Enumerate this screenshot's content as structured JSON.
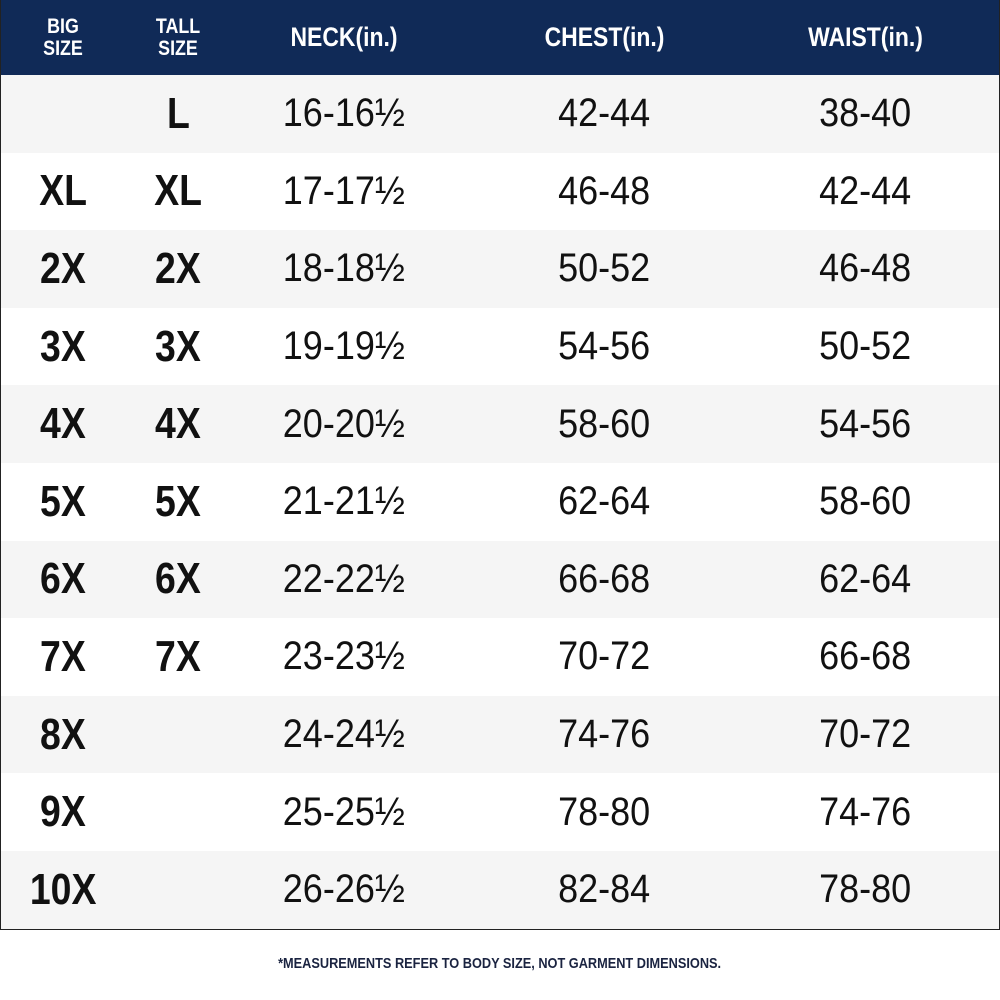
{
  "header": {
    "big_size": "BIG SIZE",
    "tall_size": "TALL SIZE",
    "neck": "NECK(in.)",
    "chest": "CHEST(in.)",
    "waist": "WAIST(in.)"
  },
  "colors": {
    "header_bg": "#102a57",
    "stripe": "#f5f5f5"
  },
  "rows": [
    {
      "big": "",
      "tall": "L",
      "neck": "16-16½",
      "chest": "42-44",
      "waist": "38-40"
    },
    {
      "big": "XL",
      "tall": "XL",
      "neck": "17-17½",
      "chest": "46-48",
      "waist": "42-44"
    },
    {
      "big": "2X",
      "tall": "2X",
      "neck": "18-18½",
      "chest": "50-52",
      "waist": "46-48"
    },
    {
      "big": "3X",
      "tall": "3X",
      "neck": "19-19½",
      "chest": "54-56",
      "waist": "50-52"
    },
    {
      "big": "4X",
      "tall": "4X",
      "neck": "20-20½",
      "chest": "58-60",
      "waist": "54-56"
    },
    {
      "big": "5X",
      "tall": "5X",
      "neck": "21-21½",
      "chest": "62-64",
      "waist": "58-60"
    },
    {
      "big": "6X",
      "tall": "6X",
      "neck": "22-22½",
      "chest": "66-68",
      "waist": "62-64"
    },
    {
      "big": "7X",
      "tall": "7X",
      "neck": "23-23½",
      "chest": "70-72",
      "waist": "66-68"
    },
    {
      "big": "8X",
      "tall": "",
      "neck": "24-24½",
      "chest": "74-76",
      "waist": "70-72"
    },
    {
      "big": "9X",
      "tall": "",
      "neck": "25-25½",
      "chest": "78-80",
      "waist": "74-76"
    },
    {
      "big": "10X",
      "tall": "",
      "neck": "26-26½",
      "chest": "82-84",
      "waist": "78-80"
    }
  ],
  "footnote": "*MEASUREMENTS REFER TO BODY SIZE, NOT GARMENT DIMENSIONS."
}
